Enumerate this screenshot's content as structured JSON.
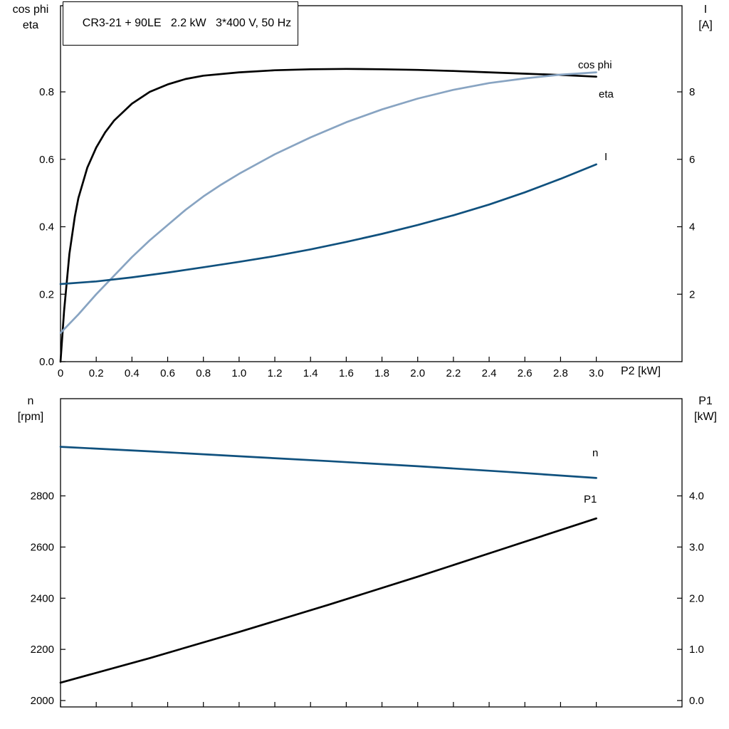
{
  "title": "CR3-21 + 90LE   2.2 kW   3*400 V, 50 Hz",
  "axis_labels": {
    "top_left": [
      "cos phi",
      "eta"
    ],
    "top_right": [
      "I",
      "[A]"
    ],
    "x_axis": "P2 [kW]",
    "bottom_left": [
      "n",
      "[rpm]"
    ],
    "bottom_right": [
      "P1",
      "[kW]"
    ]
  },
  "colors": {
    "black": "#000000",
    "light_blue": "#88a4c2",
    "dark_blue": "#10517e"
  },
  "chart_data": [
    {
      "type": "line",
      "title": "CR3-21 + 90LE   2.2 kW   3*400 V, 50 Hz",
      "xlabel": "P2 [kW]",
      "ylabel_left": "cos phi / eta",
      "ylabel_right": "I [A]",
      "xlim": [
        0,
        3.48
      ],
      "ylim_left": [
        0,
        1.0555
      ],
      "ylim_right": [
        0,
        10.555
      ],
      "grid": false,
      "x_ticks": {
        "values": [
          0,
          0.2,
          0.4,
          0.6,
          0.8,
          1.0,
          1.2,
          1.4,
          1.6,
          1.8,
          2.0,
          2.2,
          2.4,
          2.6,
          2.8,
          3.0
        ],
        "labels": [
          "0",
          "0.2",
          "0.4",
          "0.6",
          "0.8",
          "1.0",
          "1.2",
          "1.4",
          "1.6",
          "1.8",
          "2.0",
          "2.2",
          "2.4",
          "2.6",
          "2.8",
          "3.0"
        ]
      },
      "y_ticks_left": {
        "values": [
          0,
          0.2,
          0.4,
          0.6,
          0.8
        ],
        "labels": [
          "0.0",
          "0.2",
          "0.4",
          "0.6",
          "0.8"
        ]
      },
      "y_ticks_right": {
        "values": [
          2,
          4,
          6,
          8
        ],
        "labels": [
          "2",
          "4",
          "6",
          "8"
        ]
      },
      "series": [
        {
          "name": "eta",
          "axis": "left",
          "color": "#000000",
          "x": [
            0,
            0.02,
            0.05,
            0.08,
            0.1,
            0.15,
            0.2,
            0.25,
            0.3,
            0.4,
            0.5,
            0.6,
            0.7,
            0.8,
            1.0,
            1.2,
            1.4,
            1.6,
            1.8,
            2.0,
            2.2,
            2.4,
            2.6,
            2.8,
            3.0
          ],
          "y": [
            0,
            0.15,
            0.32,
            0.43,
            0.485,
            0.575,
            0.635,
            0.68,
            0.715,
            0.765,
            0.8,
            0.822,
            0.838,
            0.848,
            0.858,
            0.864,
            0.867,
            0.868,
            0.867,
            0.865,
            0.862,
            0.858,
            0.854,
            0.85,
            0.845
          ]
        },
        {
          "name": "cos phi",
          "axis": "left",
          "color": "#88a4c2",
          "x": [
            0,
            0.1,
            0.2,
            0.3,
            0.4,
            0.5,
            0.6,
            0.7,
            0.8,
            0.9,
            1.0,
            1.2,
            1.4,
            1.6,
            1.8,
            2.0,
            2.2,
            2.4,
            2.6,
            2.8,
            3.0
          ],
          "y": [
            0.085,
            0.14,
            0.2,
            0.255,
            0.31,
            0.36,
            0.405,
            0.45,
            0.49,
            0.525,
            0.557,
            0.615,
            0.665,
            0.71,
            0.748,
            0.78,
            0.806,
            0.826,
            0.84,
            0.851,
            0.858
          ]
        },
        {
          "name": "I",
          "axis": "right",
          "color": "#10517e",
          "x": [
            0,
            0.2,
            0.4,
            0.6,
            0.8,
            1.0,
            1.2,
            1.4,
            1.6,
            1.8,
            2.0,
            2.2,
            2.4,
            2.6,
            2.8,
            3.0
          ],
          "y": [
            2.3,
            2.38,
            2.5,
            2.64,
            2.8,
            2.96,
            3.13,
            3.33,
            3.55,
            3.79,
            4.05,
            4.34,
            4.66,
            5.02,
            5.42,
            5.85
          ]
        }
      ],
      "labels": [
        {
          "text": "cos phi",
          "color": "#88a4c2",
          "x": 812,
          "y": 96
        },
        {
          "text": "eta",
          "color": "#000000",
          "x": 841,
          "y": 137
        },
        {
          "text": "I",
          "color": "#10517e",
          "x": 849,
          "y": 225
        }
      ]
    },
    {
      "type": "line",
      "title": "",
      "xlabel": "",
      "ylabel_left": "n [rpm]",
      "ylabel_right": "P1 [kW]",
      "xlim": [
        0,
        3.48
      ],
      "ylim_left": [
        1975,
        3180
      ],
      "ylim_right": [
        -0.125,
        5.9
      ],
      "grid": false,
      "x_ticks": {
        "values": [
          0,
          0.2,
          0.4,
          0.6,
          0.8,
          1.0,
          1.2,
          1.4,
          1.6,
          1.8,
          2.0,
          2.2,
          2.4,
          2.6,
          2.8,
          3.0
        ],
        "labels": [
          "",
          "",
          "",
          "",
          "",
          "",
          "",
          "",
          "",
          "",
          "",
          "",
          "",
          "",
          "",
          ""
        ]
      },
      "y_ticks_left": {
        "values": [
          2000,
          2200,
          2400,
          2600,
          2800
        ],
        "labels": [
          "2000",
          "2200",
          "2400",
          "2600",
          "2800"
        ]
      },
      "y_ticks_right": {
        "values": [
          0,
          1,
          2,
          3,
          4
        ],
        "labels": [
          "0.0",
          "1.0",
          "2.0",
          "3.0",
          "4.0"
        ]
      },
      "series": [
        {
          "name": "n",
          "axis": "left",
          "color": "#10517e",
          "x": [
            0,
            0.5,
            1.0,
            1.5,
            2.0,
            2.5,
            3.0
          ],
          "y": [
            2992,
            2974,
            2955,
            2936,
            2916,
            2894,
            2870
          ]
        },
        {
          "name": "P1",
          "axis": "right",
          "color": "#000000",
          "x": [
            0,
            0.5,
            1.0,
            1.5,
            2.0,
            2.5,
            3.0
          ],
          "y": [
            0.35,
            0.83,
            1.34,
            1.87,
            2.42,
            2.99,
            3.56
          ]
        }
      ],
      "labels": [
        {
          "text": "n",
          "color": "#10517e",
          "x": 832,
          "y": 641
        },
        {
          "text": "P1",
          "color": "#000000",
          "x": 820,
          "y": 706
        }
      ]
    }
  ]
}
